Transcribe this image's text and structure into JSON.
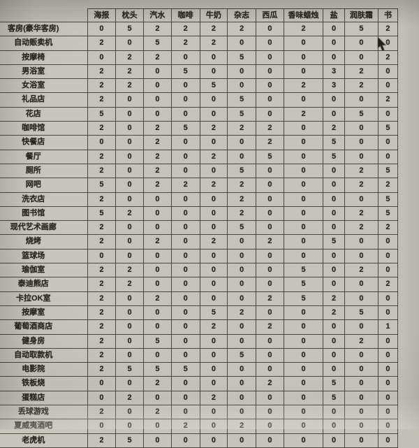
{
  "table": {
    "corner_label": "",
    "columns": [
      "海报",
      "枕头",
      "汽水",
      "咖啡",
      "牛奶",
      "杂志",
      "西瓜",
      "香味蜡烛",
      "盐",
      "润肤霜",
      "书"
    ],
    "rows": [
      {
        "label": "客房(豪华客房)",
        "values": [
          0,
          5,
          2,
          2,
          2,
          2,
          0,
          2,
          0,
          5,
          2
        ]
      },
      {
        "label": "自动贩卖机",
        "values": [
          2,
          0,
          5,
          2,
          2,
          0,
          0,
          0,
          0,
          0,
          0
        ]
      },
      {
        "label": "按摩椅",
        "values": [
          0,
          2,
          2,
          0,
          0,
          5,
          0,
          0,
          0,
          0,
          2
        ]
      },
      {
        "label": "男浴室",
        "values": [
          2,
          2,
          0,
          5,
          0,
          0,
          0,
          0,
          3,
          2,
          0
        ]
      },
      {
        "label": "女浴室",
        "values": [
          2,
          2,
          0,
          0,
          5,
          0,
          0,
          2,
          3,
          2,
          0
        ]
      },
      {
        "label": "礼品店",
        "values": [
          2,
          0,
          0,
          0,
          0,
          5,
          0,
          0,
          0,
          0,
          2
        ]
      },
      {
        "label": "花店",
        "values": [
          5,
          0,
          0,
          0,
          0,
          5,
          0,
          2,
          0,
          5,
          0
        ]
      },
      {
        "label": "咖啡馆",
        "values": [
          2,
          0,
          2,
          5,
          2,
          2,
          2,
          0,
          2,
          0,
          5
        ]
      },
      {
        "label": "快餐店",
        "values": [
          0,
          0,
          2,
          0,
          0,
          0,
          2,
          0,
          5,
          0,
          0
        ]
      },
      {
        "label": "餐厅",
        "values": [
          2,
          0,
          2,
          0,
          2,
          0,
          5,
          0,
          5,
          0,
          0
        ]
      },
      {
        "label": "厕所",
        "values": [
          2,
          0,
          2,
          0,
          0,
          5,
          0,
          0,
          0,
          2,
          5
        ]
      },
      {
        "label": "网吧",
        "values": [
          5,
          0,
          2,
          2,
          2,
          2,
          0,
          0,
          0,
          2,
          2
        ]
      },
      {
        "label": "洗衣店",
        "values": [
          2,
          0,
          0,
          0,
          0,
          2,
          0,
          0,
          0,
          0,
          5
        ]
      },
      {
        "label": "图书馆",
        "values": [
          5,
          2,
          0,
          0,
          0,
          2,
          0,
          0,
          0,
          2,
          5
        ]
      },
      {
        "label": "现代艺术画廊",
        "values": [
          2,
          0,
          0,
          0,
          0,
          5,
          0,
          0,
          0,
          2,
          2
        ]
      },
      {
        "label": "烧烤",
        "values": [
          2,
          0,
          2,
          0,
          2,
          0,
          2,
          0,
          5,
          0,
          0
        ]
      },
      {
        "label": "篮球场",
        "values": [
          0,
          0,
          0,
          0,
          0,
          0,
          0,
          0,
          0,
          0,
          0
        ]
      },
      {
        "label": "瑜伽室",
        "values": [
          2,
          2,
          0,
          0,
          0,
          0,
          0,
          5,
          0,
          2,
          0
        ]
      },
      {
        "label": "泰迪熊店",
        "values": [
          2,
          2,
          0,
          0,
          0,
          0,
          0,
          5,
          0,
          0,
          2
        ]
      },
      {
        "label": "卡拉OK室",
        "values": [
          2,
          0,
          2,
          0,
          0,
          0,
          2,
          5,
          2,
          0,
          0
        ]
      },
      {
        "label": "按摩室",
        "values": [
          2,
          0,
          0,
          0,
          5,
          2,
          0,
          0,
          2,
          5,
          0
        ]
      },
      {
        "label": "葡萄酒商店",
        "values": [
          2,
          0,
          0,
          0,
          2,
          0,
          2,
          0,
          0,
          0,
          1
        ]
      },
      {
        "label": "健身房",
        "values": [
          2,
          0,
          5,
          0,
          0,
          0,
          0,
          0,
          0,
          2,
          0
        ]
      },
      {
        "label": "自动取款机",
        "values": [
          2,
          0,
          0,
          0,
          0,
          5,
          0,
          0,
          0,
          0,
          0
        ]
      },
      {
        "label": "电影院",
        "values": [
          2,
          5,
          5,
          5,
          0,
          0,
          0,
          0,
          0,
          0,
          0
        ]
      },
      {
        "label": "铁板烧",
        "values": [
          0,
          0,
          2,
          0,
          0,
          0,
          2,
          0,
          5,
          0,
          0
        ]
      },
      {
        "label": "蛋糕店",
        "values": [
          0,
          2,
          0,
          0,
          2,
          0,
          0,
          0,
          5,
          0,
          0
        ]
      },
      {
        "label": "丢球游戏",
        "values": [
          2,
          0,
          2,
          0,
          0,
          0,
          0,
          0,
          0,
          0,
          0
        ]
      },
      {
        "label": "夏威夷酒吧",
        "values": [
          0,
          0,
          0,
          2,
          0,
          2,
          0,
          0,
          0,
          0,
          0
        ]
      },
      {
        "label": "老虎机",
        "values": [
          2,
          5,
          0,
          0,
          0,
          0,
          0,
          0,
          0,
          0,
          0
        ]
      }
    ]
  },
  "cursor": {
    "icon": "mouse-pointer-icon"
  },
  "colors": {
    "table_bg": "#c6c3ba",
    "border": "#34322c",
    "text": "#26251f"
  }
}
